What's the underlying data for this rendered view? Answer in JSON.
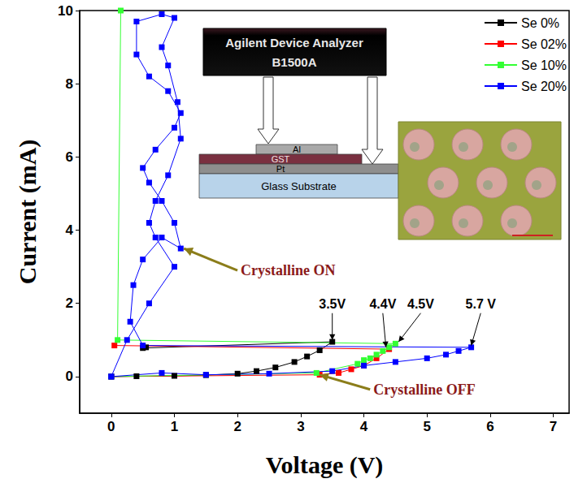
{
  "chart_data": {
    "type": "line",
    "marker": "square",
    "x_label": "Voltage (V)",
    "y_label": "Current (mA)",
    "xlim": [
      -0.5,
      7.25
    ],
    "xticks": [
      0,
      1,
      2,
      3,
      4,
      5,
      6,
      7
    ],
    "ylim": [
      -1,
      10
    ],
    "yticks": [
      0,
      2,
      4,
      6,
      8,
      10
    ],
    "legend": "upper right",
    "series": [
      {
        "name": "Se 0%",
        "color": "#000000",
        "x": [
          0,
          0.4,
          1,
          1.5,
          2,
          2.3,
          2.6,
          2.9,
          3.1,
          3.3,
          3.5,
          0.5,
          0.55
        ],
        "values": [
          0,
          0.01,
          0.02,
          0.04,
          0.08,
          0.15,
          0.25,
          0.4,
          0.55,
          0.72,
          0.95,
          0.78,
          0.8
        ]
      },
      {
        "name": "Se 02%",
        "color": "#ff0000",
        "x": [
          0,
          3.3,
          3.6,
          3.8,
          4.0,
          4.2,
          4.4,
          0.05
        ],
        "values": [
          0,
          0.05,
          0.1,
          0.2,
          0.3,
          0.5,
          0.75,
          0.85
        ]
      },
      {
        "name": "Se 10%",
        "color": "#33ff33",
        "x": [
          0,
          3.25,
          3.9,
          4.0,
          4.1,
          4.2,
          4.3,
          4.4,
          4.5,
          0.1,
          0.15
        ],
        "values": [
          0,
          0.1,
          0.35,
          0.45,
          0.5,
          0.6,
          0.7,
          0.8,
          0.9,
          1.0,
          10
        ]
      },
      {
        "name": "Se 20%",
        "color": "#0000ff",
        "x": [
          0,
          0.8,
          1.5,
          2.5,
          3.5,
          4.0,
          4.5,
          5.0,
          5.3,
          5.5,
          5.7,
          0.5,
          0.3,
          0.35,
          0.5,
          0.8,
          1.1,
          1.0,
          0.8,
          0.6,
          0.5,
          0.7,
          1.0,
          1.1,
          0.9,
          0.6,
          0.4,
          0.4,
          0.8,
          1.0,
          0.8,
          0.9,
          1.05,
          1.1,
          0.9,
          0.7,
          0.6,
          0.7,
          1.0,
          0.6,
          0.25,
          0
        ],
        "values": [
          0,
          0.1,
          0.05,
          0.08,
          0.15,
          0.3,
          0.4,
          0.5,
          0.6,
          0.7,
          0.8,
          0.85,
          1.5,
          2.5,
          3.2,
          3.8,
          3.5,
          4.2,
          4.8,
          5.3,
          5.7,
          6.2,
          6.8,
          7.2,
          7.8,
          8.2,
          8.8,
          9.7,
          9.9,
          9.8,
          9.0,
          8.5,
          7.5,
          6.5,
          5.5,
          4.8,
          4.2,
          3.8,
          3.0,
          2.0,
          1.0,
          0
        ]
      }
    ],
    "annotations": [
      {
        "text": "3.5V",
        "x": 3.5,
        "y": 1.0,
        "text_x": 3.5,
        "text_y": 1.8,
        "color": "#000000"
      },
      {
        "text": "4.4V",
        "x": 4.35,
        "y": 0.8,
        "text_x": 4.3,
        "text_y": 1.8,
        "color": "#000000"
      },
      {
        "text": "4.5V",
        "x": 4.55,
        "y": 0.95,
        "text_x": 4.9,
        "text_y": 1.8,
        "color": "#000000"
      },
      {
        "text": "5.7 V",
        "x": 5.7,
        "y": 0.85,
        "text_x": 5.85,
        "text_y": 1.8,
        "color": "#000000"
      },
      {
        "text": "Crystalline ON",
        "x": 1.15,
        "y": 3.5,
        "text_x": 2.05,
        "text_y": 2.9,
        "color": "#8b1a1a"
      },
      {
        "text": "Crystalline OFF",
        "x": 3.3,
        "y": 0.05,
        "text_x": 4.15,
        "text_y": -0.35,
        "color": "#8b1a1a"
      }
    ],
    "inset": {
      "instrument": [
        "Agilent Device Analyzer",
        "B1500A"
      ],
      "layers": [
        "Al",
        "GST",
        "Pt",
        "Glass Substrate"
      ]
    }
  }
}
